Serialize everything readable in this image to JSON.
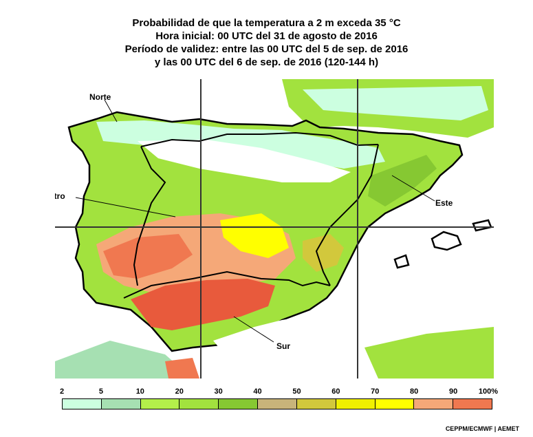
{
  "title": {
    "line1": "Probabilidad de que la temperatura a 2 m exceda 35 °C",
    "line2": "Hora inicial: 00 UTC del 31 de agosto de 2016",
    "line3": "Período de validez: entre las 00 UTC del 5 de sep. de 2016",
    "line4": "y las 00 UTC del 6 de sep. de 2016 (120-144 h)"
  },
  "regions": {
    "norte": "Norte",
    "centro": "Centro",
    "este": "Este",
    "sur": "Sur"
  },
  "legend": {
    "ticks": [
      "2",
      "5",
      "10",
      "20",
      "30",
      "40",
      "50",
      "60",
      "70",
      "80",
      "90",
      "100%"
    ],
    "colors": [
      "#ccffe0",
      "#a6e0b2",
      "#b4f04a",
      "#a2e23e",
      "#86c832",
      "#c8b47a",
      "#d2c83c",
      "#f0f000",
      "#ffff00",
      "#f5a878",
      "#f07850",
      "#e85a3c"
    ]
  },
  "palette": {
    "background": "#ffffff",
    "land_low": "#ccffe0",
    "land_mid": "#a2e23e",
    "land_high": "#f07850",
    "grid": "#333333"
  },
  "credit": "CEPPM/ECMWF | AEMET"
}
